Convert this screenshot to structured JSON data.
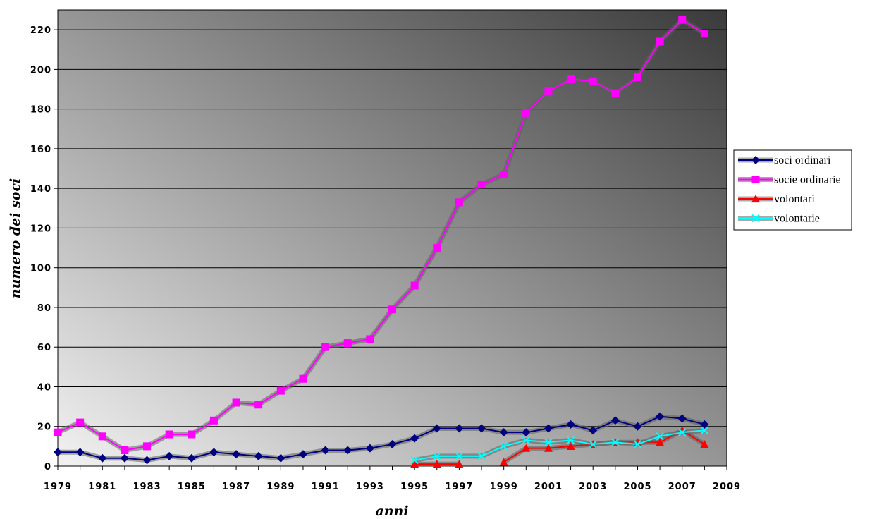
{
  "chart_data": {
    "type": "line",
    "xlabel": "anni",
    "ylabel": "numero dei soci",
    "xlim": [
      1979,
      2009
    ],
    "ylim": [
      0,
      230
    ],
    "x_ticks": [
      "1979",
      "1981",
      "1983",
      "1985",
      "1987",
      "1989",
      "1991",
      "1993",
      "1995",
      "1997",
      "1999",
      "2001",
      "2003",
      "2005",
      "2007",
      "2009"
    ],
    "y_ticks": [
      "0",
      "20",
      "40",
      "60",
      "80",
      "100",
      "120",
      "140",
      "160",
      "180",
      "200",
      "220"
    ],
    "grid": "horizontal",
    "legend_position": "right",
    "series": [
      {
        "name": "soci ordinari",
        "color": "#000080",
        "marker": "diamond",
        "points": [
          [
            1979,
            7
          ],
          [
            1980,
            7
          ],
          [
            1981,
            4
          ],
          [
            1982,
            4
          ],
          [
            1983,
            3
          ],
          [
            1984,
            5
          ],
          [
            1985,
            4
          ],
          [
            1986,
            7
          ],
          [
            1987,
            6
          ],
          [
            1988,
            5
          ],
          [
            1989,
            4
          ],
          [
            1990,
            6
          ],
          [
            1991,
            8
          ],
          [
            1992,
            8
          ],
          [
            1993,
            9
          ],
          [
            1994,
            11
          ],
          [
            1995,
            14
          ],
          [
            1996,
            19
          ],
          [
            1997,
            19
          ],
          [
            1998,
            19
          ],
          [
            1999,
            17
          ],
          [
            2000,
            17
          ],
          [
            2001,
            19
          ],
          [
            2002,
            21
          ],
          [
            2003,
            18
          ],
          [
            2004,
            23
          ],
          [
            2005,
            20
          ],
          [
            2006,
            25
          ],
          [
            2007,
            24
          ],
          [
            2008,
            21
          ]
        ]
      },
      {
        "name": "socie ordinarie",
        "color": "#ff00ff",
        "marker": "square",
        "points": [
          [
            1979,
            17
          ],
          [
            1980,
            22
          ],
          [
            1981,
            15
          ],
          [
            1982,
            8
          ],
          [
            1983,
            10
          ],
          [
            1984,
            16
          ],
          [
            1985,
            16
          ],
          [
            1986,
            23
          ],
          [
            1987,
            32
          ],
          [
            1988,
            31
          ],
          [
            1989,
            38
          ],
          [
            1990,
            44
          ],
          [
            1991,
            60
          ],
          [
            1992,
            62
          ],
          [
            1993,
            64
          ],
          [
            1994,
            79
          ],
          [
            1995,
            91
          ],
          [
            1996,
            110
          ],
          [
            1997,
            133
          ],
          [
            1998,
            142
          ],
          [
            1999,
            147
          ],
          [
            2000,
            178
          ],
          [
            2001,
            189
          ],
          [
            2002,
            195
          ],
          [
            2003,
            194
          ],
          [
            2004,
            188
          ],
          [
            2005,
            196
          ],
          [
            2006,
            214
          ],
          [
            2007,
            225
          ],
          [
            2008,
            218
          ]
        ]
      },
      {
        "name": "volontari",
        "color": "#ff0000",
        "marker": "triangle",
        "segments": [
          [
            [
              1995,
              1
            ],
            [
              1996,
              1
            ],
            [
              1997,
              1
            ]
          ],
          [
            [
              1999,
              2
            ],
            [
              2000,
              9
            ],
            [
              2001,
              9
            ],
            [
              2002,
              10
            ],
            [
              2003,
              11
            ],
            [
              2004,
              12
            ],
            [
              2005,
              12
            ],
            [
              2006,
              12
            ],
            [
              2007,
              18
            ],
            [
              2008,
              11
            ]
          ]
        ]
      },
      {
        "name": "volontarie",
        "color": "#00ffff",
        "marker": "x",
        "points": [
          [
            1995,
            3
          ],
          [
            1996,
            5
          ],
          [
            1997,
            5
          ],
          [
            1998,
            5
          ],
          [
            1999,
            10
          ],
          [
            2000,
            13
          ],
          [
            2001,
            12
          ],
          [
            2002,
            13
          ],
          [
            2003,
            11
          ],
          [
            2004,
            12
          ],
          [
            2005,
            11
          ],
          [
            2006,
            15
          ],
          [
            2007,
            17
          ],
          [
            2008,
            18
          ]
        ]
      }
    ]
  }
}
